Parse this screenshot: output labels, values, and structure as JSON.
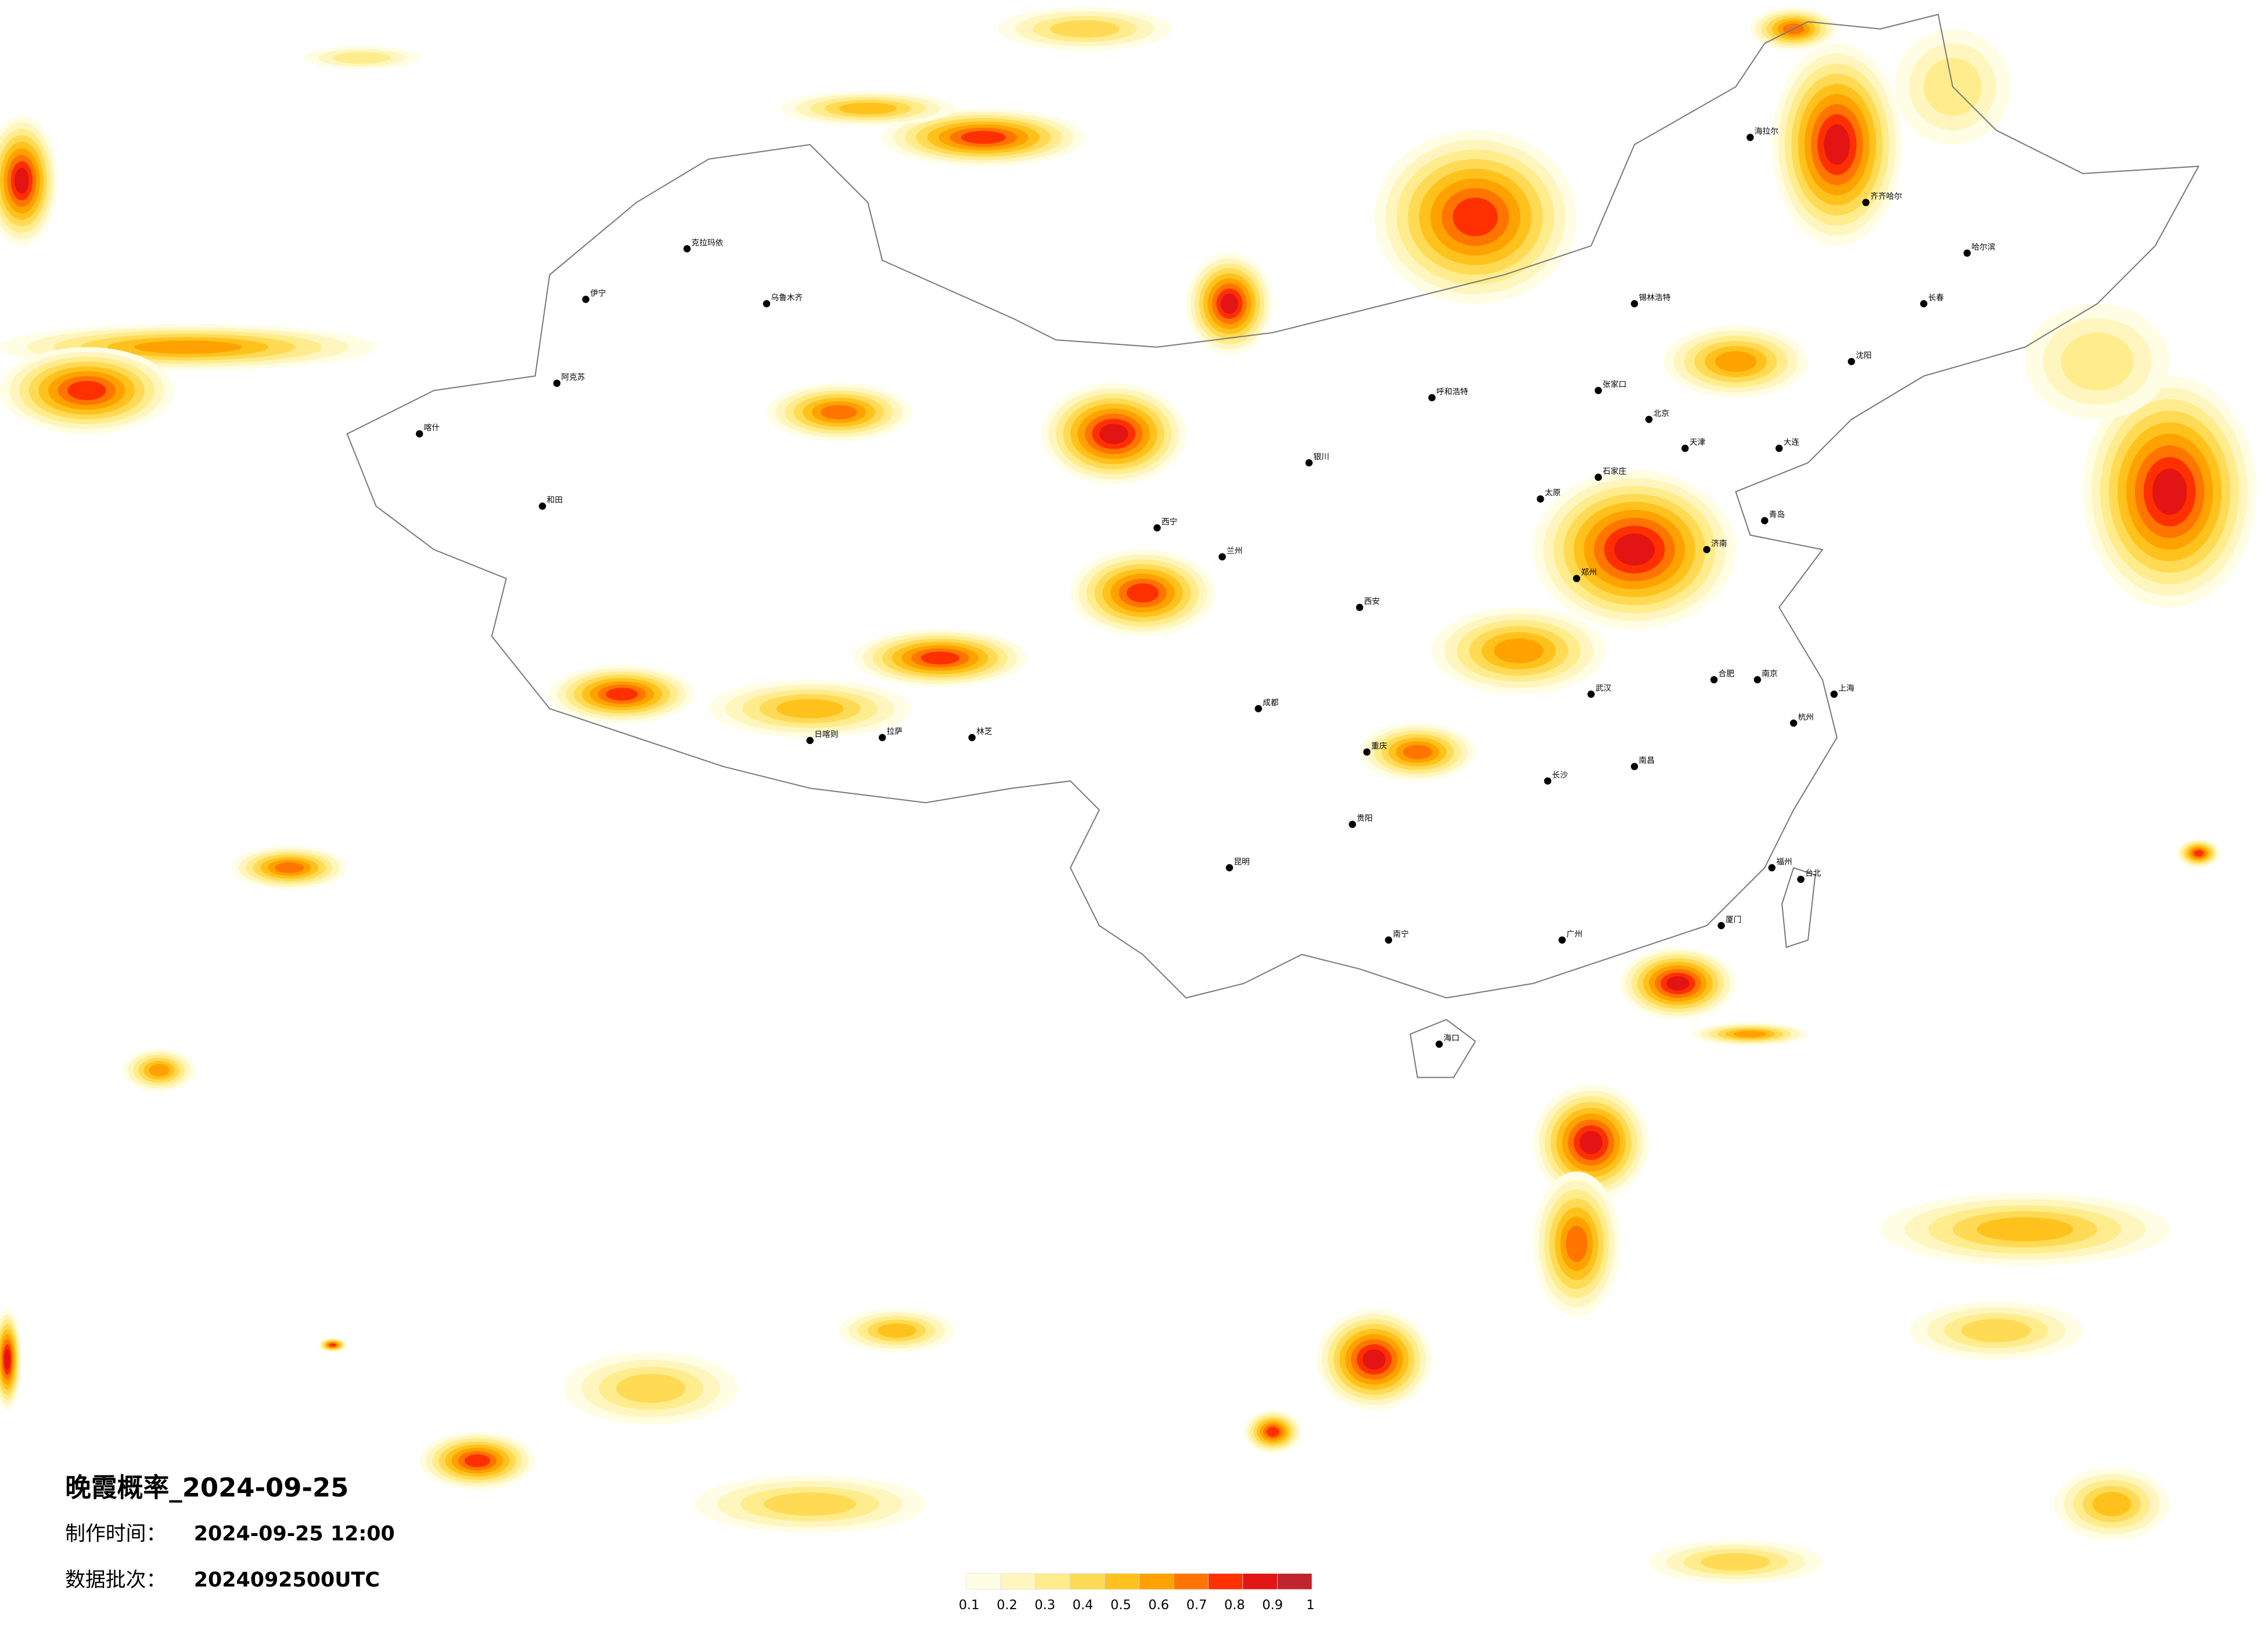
{
  "title": "晚霞概率_2024-09-25",
  "info": [
    {
      "label": "制作时间：",
      "value": "2024-09-25 12:00"
    },
    {
      "label": "数据批次：",
      "value": "2024092500UTC"
    }
  ],
  "legend": {
    "ticks": [
      0.1,
      0.2,
      0.3,
      0.4,
      0.5,
      0.6,
      0.7,
      0.8,
      0.9,
      1
    ],
    "colors": [
      "#fffde3",
      "#fff6bf",
      "#ffec8c",
      "#ffda55",
      "#ffc21c",
      "#ffa200",
      "#ff7500",
      "#ff3000",
      "#e31414",
      "#c0252f"
    ]
  },
  "cities": [
    "克拉玛依",
    "乌鲁木齐",
    "伊宁",
    "阿克苏",
    "和田",
    "喀什",
    "拉萨",
    "日喀则",
    "林芝",
    "西宁",
    "兰州",
    "银川",
    "呼和浩特",
    "北京",
    "天津",
    "石家庄",
    "太原",
    "济南",
    "郑州",
    "西安",
    "成都",
    "重庆",
    "武汉",
    "南京",
    "上海",
    "杭州",
    "合肥",
    "长沙",
    "南昌",
    "福州",
    "广州",
    "南宁",
    "海口",
    "贵阳",
    "昆明",
    "哈尔滨",
    "长春",
    "沈阳",
    "大连",
    "台北",
    "海拉尔",
    "齐齐哈尔",
    "锡林浩特",
    "张家口",
    "青岛",
    "厦门"
  ]
}
